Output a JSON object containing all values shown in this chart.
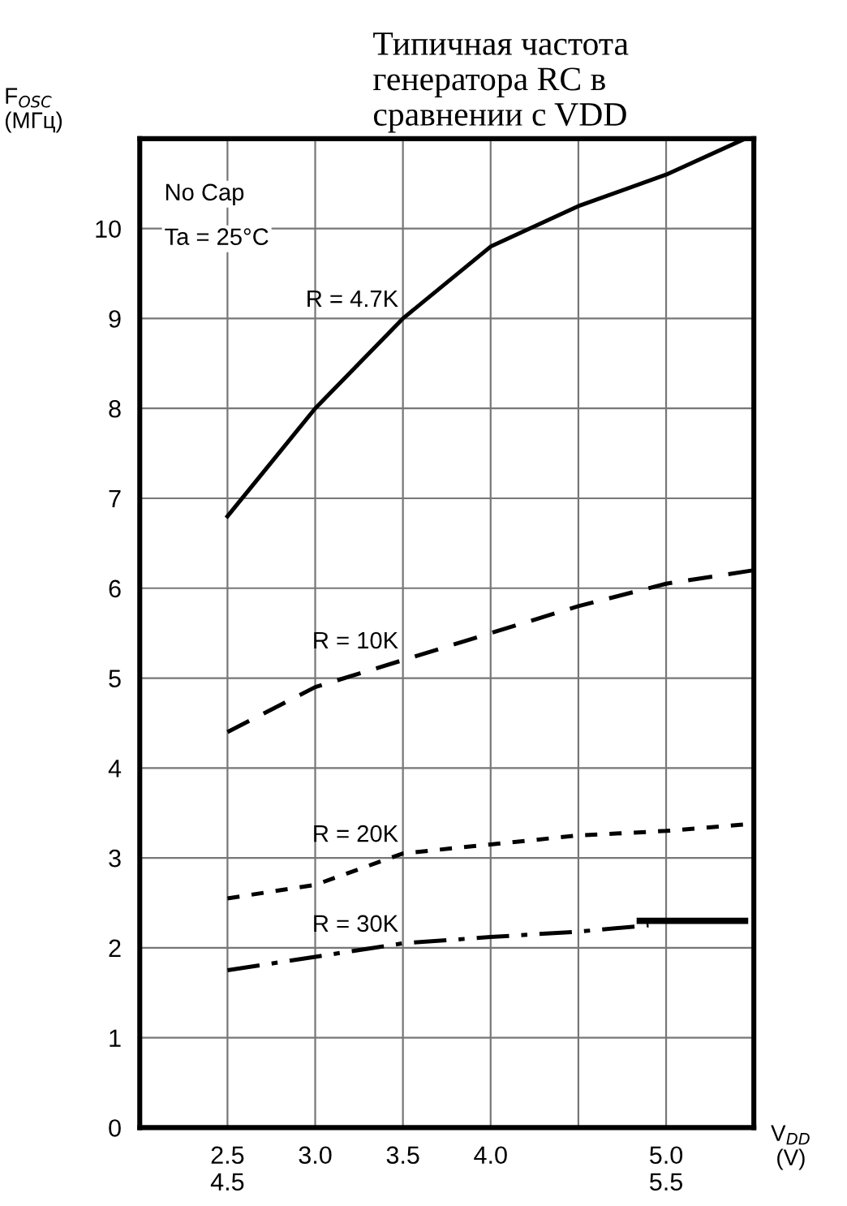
{
  "chart_data": {
    "type": "line",
    "title": "Типичная частота\nгенератора RC в\nсравнении с VDD",
    "ylabel": "F$_{OSC}$\n(МГц)",
    "xlabel": "V$_{DD}$\n(V)",
    "xlim": [
      2.0,
      5.5
    ],
    "ylim": [
      0,
      11
    ],
    "xticks": [
      {
        "value": 2.5,
        "label": "2.5\n4.5"
      },
      {
        "value": 3.0,
        "label": "3.0"
      },
      {
        "value": 3.5,
        "label": "3.5"
      },
      {
        "value": 4.0,
        "label": "4.0"
      },
      {
        "value": 4.5,
        "label": null
      },
      {
        "value": 5.0,
        "label": "5.0\n5.5"
      }
    ],
    "yticks": [
      0,
      1,
      2,
      3,
      4,
      5,
      6,
      7,
      8,
      9,
      10
    ],
    "grid": true,
    "series": [
      {
        "name": "R = 4.7K",
        "color": "#000000",
        "line_style": "solid",
        "x": [
          2.5,
          3.0,
          3.5,
          4.0,
          4.5,
          5.0,
          5.45
        ],
        "values": [
          6.8,
          8.0,
          9.0,
          9.8,
          10.25,
          10.6,
          11.0
        ]
      },
      {
        "name": "R = 10K",
        "color": "#000000",
        "line_style": "dashed",
        "x": [
          2.5,
          3.0,
          3.5,
          4.0,
          4.5,
          5.0,
          5.5
        ],
        "values": [
          4.4,
          4.9,
          5.2,
          5.5,
          5.8,
          6.05,
          6.2
        ]
      },
      {
        "name": "R = 20K",
        "color": "#000000",
        "line_style": "dotted",
        "x": [
          2.5,
          3.0,
          3.5,
          4.0,
          4.5,
          5.0,
          5.5
        ],
        "values": [
          2.55,
          2.7,
          3.05,
          3.15,
          3.25,
          3.3,
          3.38
        ]
      },
      {
        "name": "R = 30K",
        "color": "#000000",
        "line_style": "dashdot",
        "x": [
          2.5,
          3.0,
          3.5,
          4.0,
          4.5,
          4.9
        ],
        "values": [
          1.75,
          1.9,
          2.05,
          2.12,
          2.18,
          2.25
        ]
      },
      {
        "color": "#000000",
        "line_style": "solid",
        "x": [
          4.85,
          5.45
        ],
        "values": [
          2.3,
          2.3
        ]
      }
    ],
    "annotations": [
      "No Cap",
      "Ta = 25°C"
    ]
  }
}
